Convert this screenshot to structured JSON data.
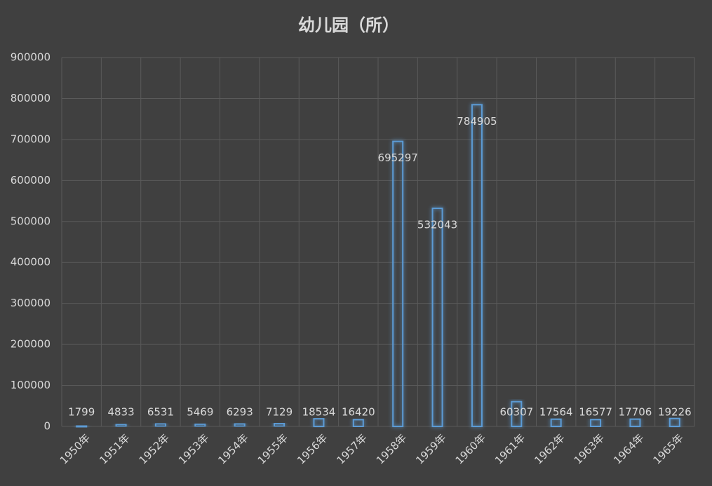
{
  "chart_data": {
    "type": "bar",
    "title": "幼儿园（所）",
    "categories": [
      "1950年",
      "1951年",
      "1952年",
      "1953年",
      "1954年",
      "1955年",
      "1956年",
      "1957年",
      "1958年",
      "1959年",
      "1960年",
      "1961年",
      "1962年",
      "1963年",
      "1964年",
      "1965年"
    ],
    "values": [
      1799,
      4833,
      6531,
      5469,
      6293,
      7129,
      18534,
      16420,
      695297,
      532043,
      784905,
      60307,
      17564,
      16577,
      17706,
      19226
    ],
    "color": "#5b9bd5",
    "ylim": [
      0,
      900000
    ],
    "yticks": [
      0,
      100000,
      200000,
      300000,
      400000,
      500000,
      600000,
      700000,
      800000,
      900000
    ],
    "grid": true
  }
}
